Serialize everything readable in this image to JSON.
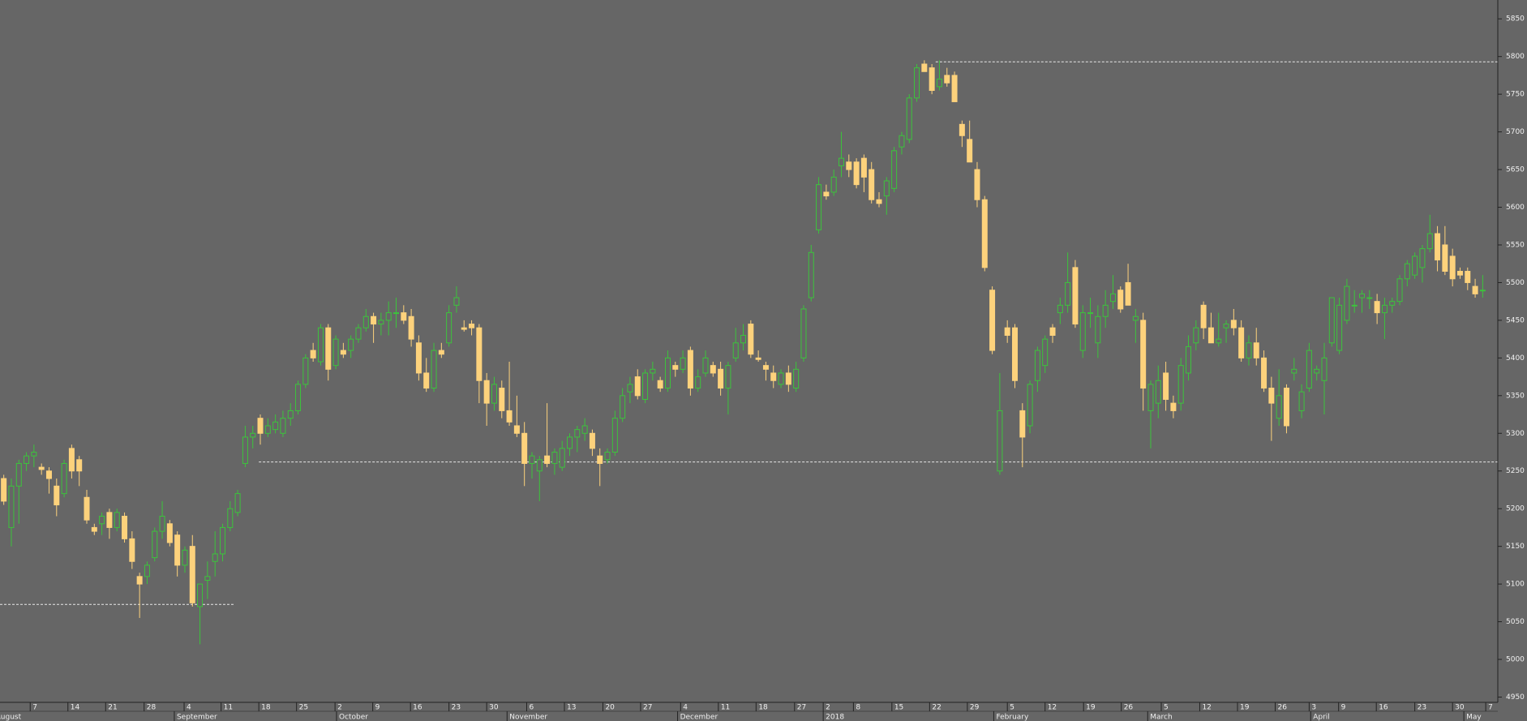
{
  "chart_data": {
    "type": "candlestick",
    "up_color": "#3cc43c",
    "down_color": "#fdd27c",
    "reference_color": "#e8e8e8",
    "xlim": [
      -0.5,
      198
    ],
    "ylim": [
      4943,
      5875
    ],
    "yticks": [
      4950,
      5000,
      5050,
      5100,
      5150,
      5200,
      5250,
      5300,
      5350,
      5400,
      5450,
      5500,
      5550,
      5600,
      5650,
      5700,
      5750,
      5800,
      5850
    ],
    "xticks": [
      {
        "value": 3.5,
        "label": "7"
      },
      {
        "value": 8.5,
        "label": "14"
      },
      {
        "value": 13.5,
        "label": "21"
      },
      {
        "value": 18.6,
        "label": "28"
      },
      {
        "value": 23.9,
        "label": "4"
      },
      {
        "value": 28.8,
        "label": "11"
      },
      {
        "value": 33.8,
        "label": "18"
      },
      {
        "value": 38.8,
        "label": "25"
      },
      {
        "value": 43.9,
        "label": "2"
      },
      {
        "value": 48.9,
        "label": "9"
      },
      {
        "value": 53.9,
        "label": "16"
      },
      {
        "value": 59,
        "label": "23"
      },
      {
        "value": 64,
        "label": "30"
      },
      {
        "value": 69.3,
        "label": "6"
      },
      {
        "value": 74.3,
        "label": "13"
      },
      {
        "value": 79.4,
        "label": "20"
      },
      {
        "value": 84.4,
        "label": "27"
      },
      {
        "value": 89.7,
        "label": "4"
      },
      {
        "value": 94.7,
        "label": "11"
      },
      {
        "value": 99.7,
        "label": "18"
      },
      {
        "value": 104.8,
        "label": "27"
      },
      {
        "value": 108.6,
        "label": "2"
      },
      {
        "value": 112.6,
        "label": "8"
      },
      {
        "value": 117.7,
        "label": "15"
      },
      {
        "value": 122.7,
        "label": "22"
      },
      {
        "value": 127.7,
        "label": "29"
      },
      {
        "value": 133,
        "label": "5"
      },
      {
        "value": 138,
        "label": "12"
      },
      {
        "value": 143.1,
        "label": "19"
      },
      {
        "value": 148.1,
        "label": "26"
      },
      {
        "value": 153.4,
        "label": "5"
      },
      {
        "value": 158.5,
        "label": "12"
      },
      {
        "value": 163.5,
        "label": "19"
      },
      {
        "value": 168.5,
        "label": "26"
      },
      {
        "value": 173,
        "label": "3"
      },
      {
        "value": 176.9,
        "label": "9"
      },
      {
        "value": 181.9,
        "label": "16"
      },
      {
        "value": 187,
        "label": "23"
      },
      {
        "value": 192,
        "label": "30"
      },
      {
        "value": 196.4,
        "label": "7"
      }
    ],
    "month_labels": [
      {
        "value": -1.4,
        "label": "August"
      },
      {
        "value": 22.6,
        "label": "September"
      },
      {
        "value": 44.1,
        "label": "October"
      },
      {
        "value": 66.7,
        "label": "November"
      },
      {
        "value": 89.3,
        "label": "December"
      },
      {
        "value": 108.6,
        "label": "2018"
      },
      {
        "value": 131.2,
        "label": "February"
      },
      {
        "value": 151.6,
        "label": "March"
      },
      {
        "value": 173.2,
        "label": "April"
      },
      {
        "value": 193.5,
        "label": "May"
      }
    ],
    "reference_lines": [
      {
        "value": 5793,
        "from": 123.5
      },
      {
        "value": 5262,
        "from": 33.8
      },
      {
        "value": 5073,
        "from": -0.5,
        "to": 30.6
      }
    ],
    "ohlc": [
      [
        5240,
        5245,
        5205,
        5210
      ],
      [
        5175,
        5240,
        5150,
        5230
      ],
      [
        5230,
        5265,
        5180,
        5260
      ],
      [
        5260,
        5275,
        5250,
        5270
      ],
      [
        5270,
        5285,
        5255,
        5275
      ],
      [
        5255,
        5260,
        5245,
        5252
      ],
      [
        5250,
        5255,
        5220,
        5240
      ],
      [
        5230,
        5240,
        5190,
        5205
      ],
      [
        5220,
        5265,
        5215,
        5260
      ],
      [
        5280,
        5285,
        5240,
        5250
      ],
      [
        5265,
        5270,
        5230,
        5250
      ],
      [
        5215,
        5225,
        5180,
        5185
      ],
      [
        5175,
        5180,
        5165,
        5170
      ],
      [
        5180,
        5195,
        5165,
        5190
      ],
      [
        5195,
        5200,
        5160,
        5175
      ],
      [
        5175,
        5200,
        5170,
        5195
      ],
      [
        5190,
        5195,
        5155,
        5160
      ],
      [
        5160,
        5170,
        5120,
        5130
      ],
      [
        5110,
        5115,
        5055,
        5100
      ],
      [
        5110,
        5130,
        5100,
        5125
      ],
      [
        5135,
        5175,
        5130,
        5170
      ],
      [
        5170,
        5210,
        5160,
        5190
      ],
      [
        5180,
        5185,
        5150,
        5155
      ],
      [
        5165,
        5170,
        5110,
        5125
      ],
      [
        5125,
        5150,
        5115,
        5145
      ],
      [
        5150,
        5165,
        5070,
        5075
      ],
      [
        5070,
        5100,
        5020,
        5100
      ],
      [
        5105,
        5130,
        5080,
        5110
      ],
      [
        5130,
        5170,
        5110,
        5140
      ],
      [
        5140,
        5180,
        5130,
        5175
      ],
      [
        5175,
        5210,
        5170,
        5200
      ],
      [
        5195,
        5225,
        5190,
        5220
      ],
      [
        5260,
        5310,
        5255,
        5295
      ],
      [
        5295,
        5310,
        5280,
        5300
      ],
      [
        5320,
        5325,
        5285,
        5300
      ],
      [
        5300,
        5320,
        5295,
        5310
      ],
      [
        5305,
        5325,
        5300,
        5315
      ],
      [
        5300,
        5330,
        5295,
        5320
      ],
      [
        5320,
        5340,
        5310,
        5330
      ],
      [
        5330,
        5370,
        5325,
        5365
      ],
      [
        5365,
        5405,
        5360,
        5400
      ],
      [
        5410,
        5420,
        5395,
        5400
      ],
      [
        5395,
        5445,
        5390,
        5440
      ],
      [
        5440,
        5445,
        5370,
        5385
      ],
      [
        5390,
        5430,
        5385,
        5425
      ],
      [
        5410,
        5420,
        5400,
        5405
      ],
      [
        5410,
        5430,
        5400,
        5425
      ],
      [
        5425,
        5445,
        5420,
        5440
      ],
      [
        5440,
        5465,
        5435,
        5455
      ],
      [
        5455,
        5460,
        5420,
        5445
      ],
      [
        5445,
        5460,
        5430,
        5450
      ],
      [
        5450,
        5475,
        5430,
        5460
      ],
      [
        5460,
        5480,
        5440,
        5460
      ],
      [
        5460,
        5470,
        5445,
        5450
      ],
      [
        5455,
        5465,
        5415,
        5425
      ],
      [
        5420,
        5430,
        5370,
        5380
      ],
      [
        5380,
        5400,
        5355,
        5360
      ],
      [
        5360,
        5420,
        5355,
        5410
      ],
      [
        5410,
        5420,
        5400,
        5405
      ],
      [
        5420,
        5470,
        5415,
        5460
      ],
      [
        5470,
        5495,
        5460,
        5480
      ],
      [
        5440,
        5450,
        5435,
        5438
      ],
      [
        5445,
        5450,
        5430,
        5440
      ],
      [
        5440,
        5445,
        5340,
        5370
      ],
      [
        5370,
        5380,
        5310,
        5340
      ],
      [
        5340,
        5375,
        5330,
        5365
      ],
      [
        5360,
        5370,
        5320,
        5330
      ],
      [
        5330,
        5395,
        5310,
        5315
      ],
      [
        5310,
        5350,
        5295,
        5300
      ],
      [
        5300,
        5315,
        5230,
        5260
      ],
      [
        5260,
        5275,
        5240,
        5270
      ],
      [
        5250,
        5270,
        5210,
        5265
      ],
      [
        5270,
        5340,
        5255,
        5260
      ],
      [
        5260,
        5280,
        5245,
        5275
      ],
      [
        5255,
        5290,
        5250,
        5280
      ],
      [
        5280,
        5300,
        5270,
        5295
      ],
      [
        5295,
        5310,
        5275,
        5305
      ],
      [
        5300,
        5320,
        5290,
        5310
      ],
      [
        5300,
        5305,
        5270,
        5280
      ],
      [
        5270,
        5280,
        5230,
        5260
      ],
      [
        5265,
        5280,
        5260,
        5275
      ],
      [
        5275,
        5330,
        5270,
        5320
      ],
      [
        5320,
        5360,
        5315,
        5350
      ],
      [
        5355,
        5375,
        5340,
        5365
      ],
      [
        5375,
        5385,
        5345,
        5350
      ],
      [
        5345,
        5385,
        5340,
        5380
      ],
      [
        5380,
        5395,
        5370,
        5385
      ],
      [
        5370,
        5375,
        5355,
        5360
      ],
      [
        5360,
        5410,
        5355,
        5400
      ],
      [
        5390,
        5395,
        5375,
        5385
      ],
      [
        5385,
        5410,
        5380,
        5400
      ],
      [
        5410,
        5415,
        5350,
        5360
      ],
      [
        5360,
        5385,
        5355,
        5375
      ],
      [
        5380,
        5410,
        5375,
        5400
      ],
      [
        5390,
        5395,
        5375,
        5380
      ],
      [
        5385,
        5395,
        5350,
        5360
      ],
      [
        5360,
        5395,
        5325,
        5390
      ],
      [
        5400,
        5440,
        5395,
        5420
      ],
      [
        5420,
        5445,
        5410,
        5430
      ],
      [
        5445,
        5450,
        5400,
        5405
      ],
      [
        5400,
        5410,
        5395,
        5398
      ],
      [
        5390,
        5395,
        5370,
        5385
      ],
      [
        5380,
        5390,
        5360,
        5370
      ],
      [
        5365,
        5385,
        5360,
        5380
      ],
      [
        5380,
        5390,
        5355,
        5365
      ],
      [
        5360,
        5395,
        5355,
        5385
      ],
      [
        5400,
        5470,
        5395,
        5465
      ],
      [
        5480,
        5550,
        5475,
        5540
      ],
      [
        5570,
        5640,
        5565,
        5630
      ],
      [
        5620,
        5630,
        5610,
        5615
      ],
      [
        5620,
        5650,
        5615,
        5640
      ],
      [
        5655,
        5700,
        5640,
        5665
      ],
      [
        5660,
        5670,
        5640,
        5650
      ],
      [
        5660,
        5665,
        5625,
        5630
      ],
      [
        5665,
        5670,
        5620,
        5640
      ],
      [
        5650,
        5660,
        5605,
        5610
      ],
      [
        5610,
        5620,
        5600,
        5605
      ],
      [
        5615,
        5640,
        5590,
        5635
      ],
      [
        5625,
        5680,
        5620,
        5675
      ],
      [
        5680,
        5700,
        5670,
        5695
      ],
      [
        5690,
        5750,
        5685,
        5745
      ],
      [
        5745,
        5790,
        5740,
        5785
      ],
      [
        5790,
        5795,
        5780,
        5780
      ],
      [
        5785,
        5790,
        5750,
        5755
      ],
      [
        5760,
        5795,
        5755,
        5770
      ],
      [
        5775,
        5785,
        5760,
        5765
      ],
      [
        5775,
        5780,
        5740,
        5740
      ],
      [
        5710,
        5715,
        5680,
        5695
      ],
      [
        5690,
        5715,
        5660,
        5660
      ],
      [
        5650,
        5660,
        5600,
        5610
      ],
      [
        5610,
        5615,
        5515,
        5520
      ],
      [
        5490,
        5495,
        5405,
        5410
      ],
      [
        5250,
        5380,
        5245,
        5330
      ],
      [
        5440,
        5450,
        5420,
        5430
      ],
      [
        5440,
        5445,
        5360,
        5370
      ],
      [
        5330,
        5340,
        5255,
        5295
      ],
      [
        5310,
        5370,
        5300,
        5365
      ],
      [
        5370,
        5415,
        5355,
        5410
      ],
      [
        5390,
        5430,
        5380,
        5425
      ],
      [
        5440,
        5445,
        5420,
        5430
      ],
      [
        5460,
        5480,
        5445,
        5470
      ],
      [
        5470,
        5540,
        5460,
        5500
      ],
      [
        5520,
        5530,
        5440,
        5445
      ],
      [
        5410,
        5470,
        5400,
        5460
      ],
      [
        5460,
        5480,
        5440,
        5460
      ],
      [
        5420,
        5470,
        5400,
        5455
      ],
      [
        5455,
        5490,
        5440,
        5470
      ],
      [
        5475,
        5510,
        5465,
        5485
      ],
      [
        5490,
        5495,
        5460,
        5465
      ],
      [
        5500,
        5525,
        5470,
        5470
      ],
      [
        5450,
        5465,
        5420,
        5455
      ],
      [
        5450,
        5460,
        5330,
        5360
      ],
      [
        5330,
        5370,
        5280,
        5365
      ],
      [
        5340,
        5390,
        5320,
        5370
      ],
      [
        5380,
        5395,
        5330,
        5345
      ],
      [
        5340,
        5350,
        5320,
        5330
      ],
      [
        5340,
        5400,
        5330,
        5390
      ],
      [
        5380,
        5430,
        5370,
        5415
      ],
      [
        5420,
        5450,
        5410,
        5440
      ],
      [
        5470,
        5475,
        5425,
        5440
      ],
      [
        5440,
        5460,
        5420,
        5420
      ],
      [
        5420,
        5460,
        5415,
        5425
      ],
      [
        5440,
        5450,
        5420,
        5445
      ],
      [
        5450,
        5465,
        5430,
        5440
      ],
      [
        5440,
        5450,
        5395,
        5400
      ],
      [
        5400,
        5430,
        5390,
        5420
      ],
      [
        5420,
        5440,
        5390,
        5400
      ],
      [
        5400,
        5410,
        5355,
        5360
      ],
      [
        5360,
        5375,
        5290,
        5340
      ],
      [
        5320,
        5385,
        5310,
        5350
      ],
      [
        5360,
        5365,
        5300,
        5310
      ],
      [
        5380,
        5400,
        5370,
        5385
      ],
      [
        5330,
        5365,
        5320,
        5355
      ],
      [
        5360,
        5420,
        5355,
        5410
      ],
      [
        5380,
        5390,
        5370,
        5385
      ],
      [
        5370,
        5420,
        5325,
        5400
      ],
      [
        5420,
        5480,
        5415,
        5480
      ],
      [
        5410,
        5480,
        5405,
        5470
      ],
      [
        5450,
        5505,
        5445,
        5495
      ],
      [
        5470,
        5490,
        5460,
        5470
      ],
      [
        5480,
        5490,
        5460,
        5485
      ],
      [
        5480,
        5490,
        5465,
        5480
      ],
      [
        5475,
        5485,
        5445,
        5460
      ],
      [
        5460,
        5480,
        5425,
        5470
      ],
      [
        5470,
        5480,
        5460,
        5475
      ],
      [
        5475,
        5510,
        5470,
        5505
      ],
      [
        5505,
        5530,
        5495,
        5525
      ],
      [
        5510,
        5540,
        5505,
        5535
      ],
      [
        5520,
        5550,
        5500,
        5545
      ],
      [
        5545,
        5590,
        5540,
        5565
      ],
      [
        5565,
        5575,
        5515,
        5530
      ],
      [
        5550,
        5575,
        5510,
        5515
      ],
      [
        5535,
        5545,
        5495,
        5505
      ],
      [
        5515,
        5520,
        5505,
        5510
      ],
      [
        5515,
        5520,
        5490,
        5500
      ],
      [
        5495,
        5505,
        5480,
        5485
      ],
      [
        5490,
        5510,
        5480,
        5490
      ]
    ]
  }
}
